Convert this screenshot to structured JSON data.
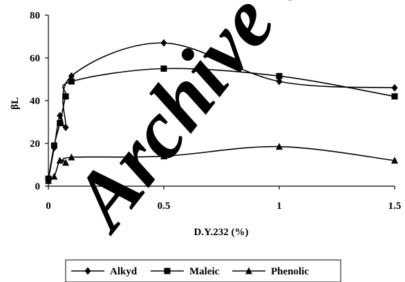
{
  "watermark": {
    "text": "Archive of SID",
    "color": "#d9d9d9"
  },
  "chart_data": {
    "type": "line",
    "xlabel": "D.Y.232 (%)",
    "ylabel": "βL",
    "xlim": [
      0,
      1.5
    ],
    "ylim": [
      0,
      80
    ],
    "x_ticks": [
      0,
      0.5,
      1,
      1.5
    ],
    "x_tick_labels": [
      "0",
      "0.5",
      "1",
      "1.5"
    ],
    "y_ticks": [
      0,
      20,
      40,
      60,
      80
    ],
    "y_tick_labels": [
      "0",
      "20",
      "40",
      "60",
      "80"
    ],
    "grid": false,
    "smooth": true,
    "legend_position": "bottom-center",
    "series": [
      {
        "name": "Alkyd",
        "marker": "diamond",
        "color": "#000000",
        "x": [
          0,
          0.025,
          0.05,
          0.075,
          0.1,
          0.5,
          1,
          1.5
        ],
        "y": [
          3,
          18,
          33,
          27.5,
          51.5,
          67,
          49,
          46
        ]
      },
      {
        "name": "Maleic",
        "marker": "square",
        "color": "#000000",
        "x": [
          0,
          0.025,
          0.05,
          0.075,
          0.1,
          0.5,
          1,
          1.5
        ],
        "y": [
          3.5,
          19,
          29.5,
          42,
          49,
          55,
          51.5,
          42
        ]
      },
      {
        "name": "Phenolic",
        "marker": "triangle",
        "color": "#000000",
        "x": [
          0,
          0.025,
          0.05,
          0.075,
          0.1,
          0.5,
          1,
          1.5
        ],
        "y": [
          2.5,
          4.5,
          12,
          11,
          13.5,
          14,
          18.5,
          12
        ]
      }
    ]
  }
}
